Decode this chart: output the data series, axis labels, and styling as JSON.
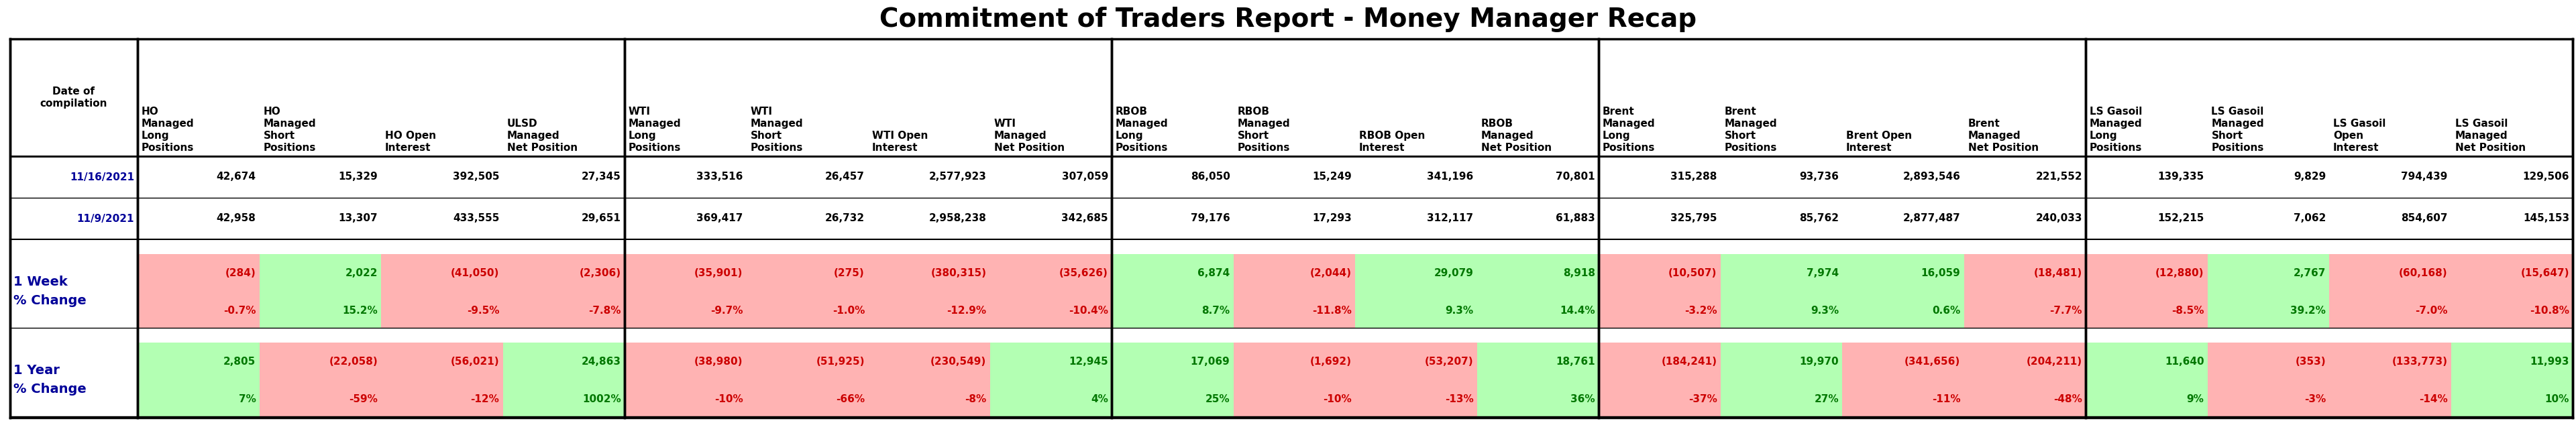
{
  "title": "Commitment of Traders Report - Money Manager Recap",
  "col_headers": [
    "HO\nManaged\nLong\nPositions",
    "HO\nManaged\nShort\nPositions",
    "HO Open\nInterest",
    "ULSD\nManaged\nNet Position",
    "WTI\nManaged\nLong\nPositions",
    "WTI\nManaged\nShort\nPositions",
    "WTI Open\nInterest",
    "WTI\nManaged\nNet Position",
    "RBOB\nManaged\nLong\nPositions",
    "RBOB\nManaged\nShort\nPositions",
    "RBOB Open\nInterest",
    "RBOB\nManaged\nNet Position",
    "Brent\nManaged\nLong\nPositions",
    "Brent\nManaged\nShort\nPositions",
    "Brent Open\nInterest",
    "Brent\nManaged\nNet Position",
    "LS Gasoil\nManaged\nLong\nPositions",
    "LS Gasoil\nManaged\nShort\nPositions",
    "LS Gasoil\nOpen\nInterest",
    "LS Gasoil\nManaged\nNet Position"
  ],
  "row_label_col": "Date of\ncompilation",
  "date1": "11/16/2021",
  "date2": "11/9/2021",
  "date1_vals": [
    "42,674",
    "15,329",
    "392,505",
    "27,345",
    "333,516",
    "26,457",
    "2,577,923",
    "307,059",
    "86,050",
    "15,249",
    "341,196",
    "70,801",
    "315,288",
    "93,736",
    "2,893,546",
    "221,552",
    "139,335",
    "9,829",
    "794,439",
    "129,506"
  ],
  "date2_vals": [
    "42,958",
    "13,307",
    "433,555",
    "29,651",
    "369,417",
    "26,732",
    "2,958,238",
    "342,685",
    "79,176",
    "17,293",
    "312,117",
    "61,883",
    "325,795",
    "85,762",
    "2,877,487",
    "240,033",
    "152,215",
    "7,062",
    "854,607",
    "145,153"
  ],
  "week_vals": [
    "(284)",
    "2,022",
    "(41,050)",
    "(2,306)",
    "(35,901)",
    "(275)",
    "(380,315)",
    "(35,626)",
    "6,874",
    "(2,044)",
    "29,079",
    "8,918",
    "(10,507)",
    "7,974",
    "16,059",
    "(18,481)",
    "(12,880)",
    "2,767",
    "(60,168)",
    "(15,647)"
  ],
  "week_pct": [
    "-0.7%",
    "15.2%",
    "-9.5%",
    "-7.8%",
    "-9.7%",
    "-1.0%",
    "-12.9%",
    "-10.4%",
    "8.7%",
    "-11.8%",
    "9.3%",
    "14.4%",
    "-3.2%",
    "9.3%",
    "0.6%",
    "-7.7%",
    "-8.5%",
    "39.2%",
    "-7.0%",
    "-10.8%"
  ],
  "week_sign": [
    "red",
    "green",
    "red",
    "red",
    "red",
    "red",
    "red",
    "red",
    "green",
    "red",
    "green",
    "green",
    "red",
    "green",
    "green",
    "red",
    "red",
    "green",
    "red",
    "red"
  ],
  "year_vals": [
    "2,805",
    "(22,058)",
    "(56,021)",
    "24,863",
    "(38,980)",
    "(51,925)",
    "(230,549)",
    "12,945",
    "17,069",
    "(1,692)",
    "(53,207)",
    "18,761",
    "(184,241)",
    "19,970",
    "(341,656)",
    "(204,211)",
    "11,640",
    "(353)",
    "(133,773)",
    "11,993"
  ],
  "year_pct": [
    "7%",
    "-59%",
    "-12%",
    "1002%",
    "-10%",
    "-66%",
    "-8%",
    "4%",
    "25%",
    "-10%",
    "-13%",
    "36%",
    "-37%",
    "27%",
    "-11%",
    "-48%",
    "9%",
    "-3%",
    "-14%",
    "10%"
  ],
  "year_sign": [
    "green",
    "red",
    "red",
    "green",
    "red",
    "red",
    "red",
    "green",
    "green",
    "red",
    "red",
    "green",
    "red",
    "green",
    "red",
    "red",
    "green",
    "red",
    "red",
    "green"
  ],
  "bg_red": "#ffb3b3",
  "bg_green": "#b3ffb3",
  "text_red": "#cc0000",
  "text_green": "#007700",
  "text_blue": "#000099",
  "text_black": "#000000",
  "title_fs": 28,
  "header_fs": 11,
  "data_fs": 11,
  "label_fs": 14
}
